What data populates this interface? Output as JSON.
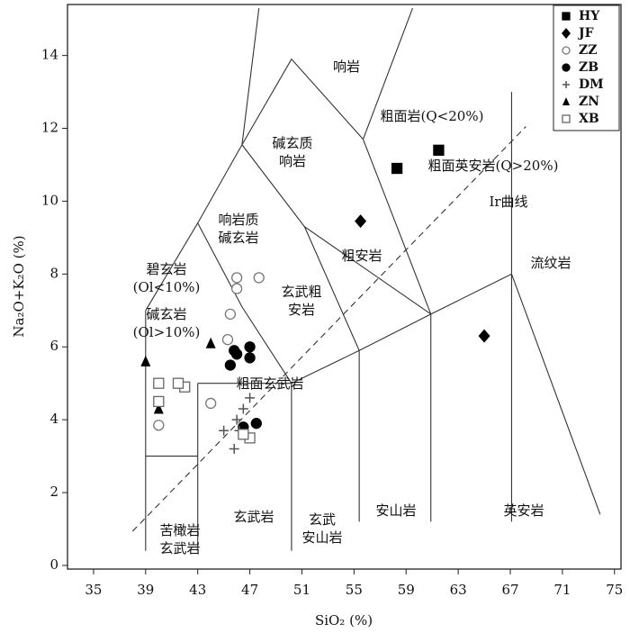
{
  "chart_data": {
    "type": "scatter",
    "xlabel": "SiO₂ (%)",
    "ylabel": "Na₂O+K₂O (%)",
    "xlim": [
      33,
      75.5
    ],
    "ylim": [
      -0.1,
      15.4
    ],
    "xticks": [
      35,
      39,
      43,
      47,
      51,
      55,
      59,
      63,
      67,
      71,
      75
    ],
    "yticks": [
      0,
      2,
      4,
      6,
      8,
      10,
      12,
      14
    ],
    "legend": "upper right",
    "series": [
      {
        "name": "HY",
        "marker": "square",
        "color": "#000000",
        "x": [
          61.5,
          58.3
        ],
        "y": [
          11.4,
          10.9
        ]
      },
      {
        "name": "JF",
        "marker": "diamond",
        "color": "#000000",
        "x": [
          55.5,
          65
        ],
        "y": [
          9.45,
          6.3
        ]
      },
      {
        "name": "ZZ",
        "marker": "circle-open",
        "color": "#777777",
        "x": [
          46,
          47.7,
          45.5,
          46,
          40,
          44,
          45.3
        ],
        "y": [
          7.9,
          7.9,
          6.9,
          7.6,
          3.85,
          4.45,
          6.2
        ]
      },
      {
        "name": "ZB",
        "marker": "circle",
        "color": "#000000",
        "x": [
          45.5,
          46,
          47,
          47,
          46.5,
          47.5,
          45.8
        ],
        "y": [
          5.5,
          5.8,
          6.0,
          5.7,
          3.8,
          3.9,
          5.9
        ]
      },
      {
        "name": "DM",
        "marker": "plus",
        "color": "#555555",
        "x": [
          45,
          46,
          46.5,
          47,
          45.8,
          46.2
        ],
        "y": [
          3.7,
          4.0,
          4.3,
          4.6,
          3.2,
          3.7
        ]
      },
      {
        "name": "ZN",
        "marker": "triangle",
        "color": "#000000",
        "x": [
          39,
          40,
          44
        ],
        "y": [
          5.6,
          4.3,
          6.1
        ]
      },
      {
        "name": "XB",
        "marker": "square-open",
        "color": "#666666",
        "x": [
          40,
          40,
          42,
          41.5,
          47,
          46.5
        ],
        "y": [
          5.0,
          4.5,
          4.9,
          5.0,
          3.5,
          3.6
        ]
      }
    ],
    "field_lines": [
      {
        "x": [
          39,
          39
        ],
        "y": [
          0.4,
          7
        ]
      },
      {
        "x": [
          39,
          43
        ],
        "y": [
          3,
          3
        ]
      },
      {
        "x": [
          43,
          43
        ],
        "y": [
          0.4,
          5
        ]
      },
      {
        "x": [
          43,
          50.2,
          55.4,
          60.9,
          67.1
        ],
        "y": [
          5,
          5,
          5.9,
          6.9,
          8.0
        ]
      },
      {
        "x": [
          50.2,
          50.2
        ],
        "y": [
          0.4,
          5
        ]
      },
      {
        "x": [
          55.4,
          55.4
        ],
        "y": [
          1.2,
          5.9
        ]
      },
      {
        "x": [
          60.9,
          60.9
        ],
        "y": [
          1.2,
          6.9
        ]
      },
      {
        "x": [
          67.1,
          67.1
        ],
        "y": [
          1.2,
          13
        ]
      },
      {
        "x": [
          67.1,
          73.9
        ],
        "y": [
          8,
          1.4
        ]
      },
      {
        "x": [
          39,
          43,
          46.4,
          47.7
        ],
        "y": [
          7,
          9.4,
          11.55,
          15.3
        ]
      },
      {
        "x": [
          43,
          46.4,
          50.2
        ],
        "y": [
          9.4,
          7.1,
          5
        ]
      },
      {
        "x": [
          46.4,
          51.2,
          55.4
        ],
        "y": [
          11.55,
          9.3,
          5.9
        ]
      },
      {
        "x": [
          51.2,
          60.9
        ],
        "y": [
          9.3,
          6.9
        ]
      },
      {
        "x": [
          46.4,
          50.2,
          55.7
        ],
        "y": [
          11.55,
          13.9,
          11.7
        ]
      },
      {
        "x": [
          55.7,
          60.9
        ],
        "y": [
          11.7,
          6.9
        ]
      },
      {
        "x": [
          55.7,
          59.5
        ],
        "y": [
          11.7,
          15.3
        ]
      },
      {
        "x": [
          38,
          68.2
        ],
        "y": [
          0.94,
          12.05
        ],
        "dashed": true
      }
    ],
    "field_labels": [
      [
        "响岩"
      ],
      [
        "碱玄质",
        "响岩"
      ],
      [
        "粗面岩(Q<20%)"
      ],
      [
        "粗面英安岩(Q>20%)"
      ],
      [
        "Ir曲线"
      ],
      [
        "响岩质",
        "碱玄岩"
      ],
      [
        "粗安岩"
      ],
      [
        "流纹岩"
      ],
      [
        "碧玄岩",
        "(Ol<10%)"
      ],
      [
        "碱玄岩",
        "(Ol>10%)"
      ],
      [
        "玄武粗",
        "安岩"
      ],
      [
        "粗面玄武岩"
      ],
      [
        "玄武岩"
      ],
      [
        "玄武",
        "安山岩"
      ],
      [
        "安山岩"
      ],
      [
        "英安岩"
      ],
      [
        "苦橄岩",
        "玄武岩"
      ]
    ]
  }
}
